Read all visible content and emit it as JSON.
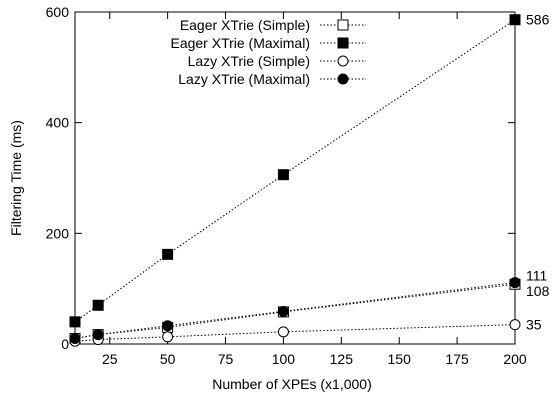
{
  "chart_data": {
    "type": "line",
    "title": "",
    "xlabel": "Number of XPEs (x1,000)",
    "ylabel": "Filtering Time (ms)",
    "xlim": [
      10,
      200
    ],
    "ylim": [
      0,
      600
    ],
    "xticks": [
      25,
      50,
      75,
      100,
      125,
      150,
      175,
      200
    ],
    "yticks": [
      0,
      200,
      400,
      600
    ],
    "grid": false,
    "legend": "top-left",
    "x": [
      10,
      20,
      50,
      100,
      200
    ],
    "series": [
      {
        "name": "Eager XTrie (Simple)",
        "marker": "open-square",
        "values": [
          10,
          17,
          30,
          58,
          108
        ]
      },
      {
        "name": "Eager XTrie (Maximal)",
        "marker": "filled-square",
        "values": [
          40,
          70,
          162,
          306,
          586
        ]
      },
      {
        "name": "Lazy XTrie (Simple)",
        "marker": "open-circle",
        "values": [
          5,
          8,
          13,
          22,
          35
        ]
      },
      {
        "name": "Lazy XTrie (Maximal)",
        "marker": "filled-circle",
        "values": [
          10,
          17,
          33,
          59,
          111
        ]
      }
    ],
    "end_labels": [
      "586",
      "111",
      "108",
      "35"
    ]
  }
}
